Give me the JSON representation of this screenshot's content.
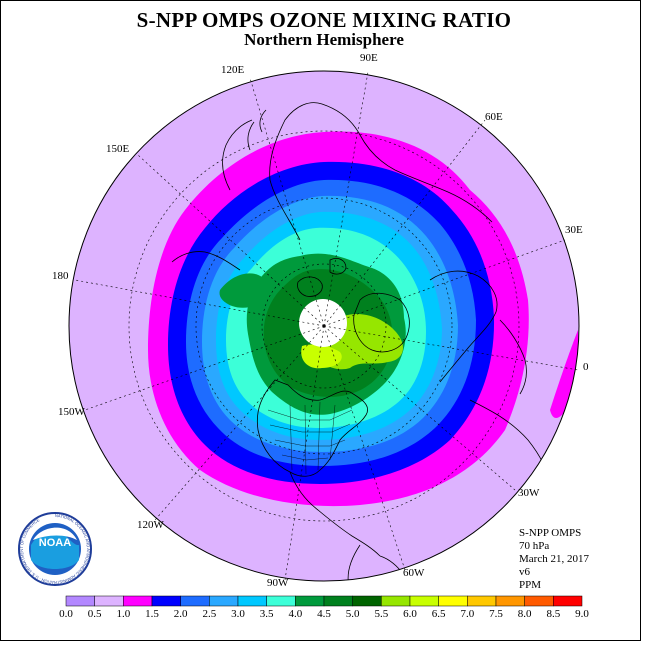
{
  "title": "S-NPP OMPS OZONE MIXING RATIO",
  "subtitle": "Northern Hemisphere",
  "longitude_labels": [
    "90E",
    "120E",
    "60E",
    "150E",
    "30E",
    "180",
    "0",
    "150W",
    "30W",
    "120W",
    "60W",
    "90W"
  ],
  "info": {
    "instrument": "S-NPP OMPS",
    "level": "70 hPa",
    "date": "March 21, 2017",
    "version": "v6",
    "units": "PPM"
  },
  "logo_text": "NOAA",
  "logo_ring_text": "NATIONAL OCEANIC AND ATMOSPHERIC ADMINISTRATION · U.S. DEPARTMENT OF COMMERCE",
  "colorbar": {
    "ticks": [
      "0.0",
      "0.5",
      "1.0",
      "1.5",
      "2.0",
      "2.5",
      "3.0",
      "3.5",
      "4.0",
      "4.5",
      "5.0",
      "5.5",
      "6.0",
      "6.5",
      "7.0",
      "7.5",
      "8.0",
      "8.5",
      "9.0"
    ],
    "colors": [
      "#b388ff",
      "#ddb3ff",
      "#ff00ff",
      "#0000ff",
      "#1e6cff",
      "#2aa8ff",
      "#00c8ff",
      "#3cffd8",
      "#009a3c",
      "#00801e",
      "#006400",
      "#96e600",
      "#c8ff00",
      "#ffff00",
      "#ffc800",
      "#ff9600",
      "#ff5a00",
      "#ff0000",
      "#8c5a3c"
    ]
  },
  "colors": {
    "background_field": "#ddb3ff",
    "low_band": "#ff00ff",
    "hole": "#ffffff"
  }
}
